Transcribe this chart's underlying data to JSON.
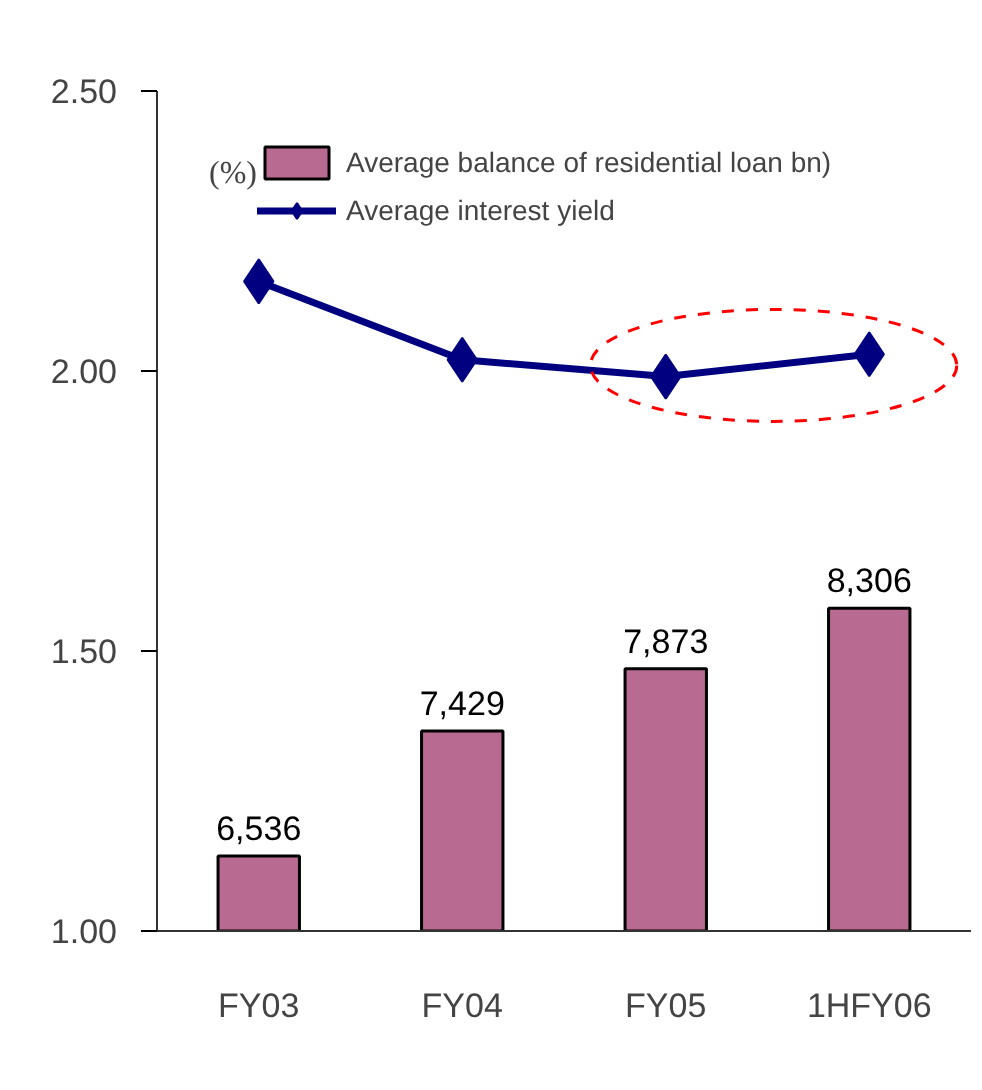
{
  "chart_data": {
    "type": "bar",
    "categories": [
      "FY03",
      "FY04",
      "FY05",
      "1HFY06"
    ],
    "ylabel": "(%)",
    "ylim": [
      1.0,
      2.5
    ],
    "yticks": [
      {
        "value": 1.0,
        "label": "1.00"
      },
      {
        "value": 1.5,
        "label": "1.50"
      },
      {
        "value": 2.0,
        "label": "2.00"
      },
      {
        "value": 2.5,
        "label": "2.50"
      }
    ],
    "y2lim": [
      6000,
      12000
    ],
    "series": [
      {
        "name": "Average balance of residential loan bn)",
        "axis": "y2",
        "color": "#b86a91",
        "values": [
          6536,
          7429,
          7873,
          8306
        ],
        "value_labels": [
          "6,536",
          "7,429",
          "7,873",
          "8,306"
        ]
      },
      {
        "name": "Average interest yield",
        "type": "line",
        "color": "#000080",
        "marker": "diamond",
        "values": [
          2.16,
          2.02,
          1.99,
          2.03
        ]
      }
    ],
    "grid": false,
    "legend": "top right"
  }
}
